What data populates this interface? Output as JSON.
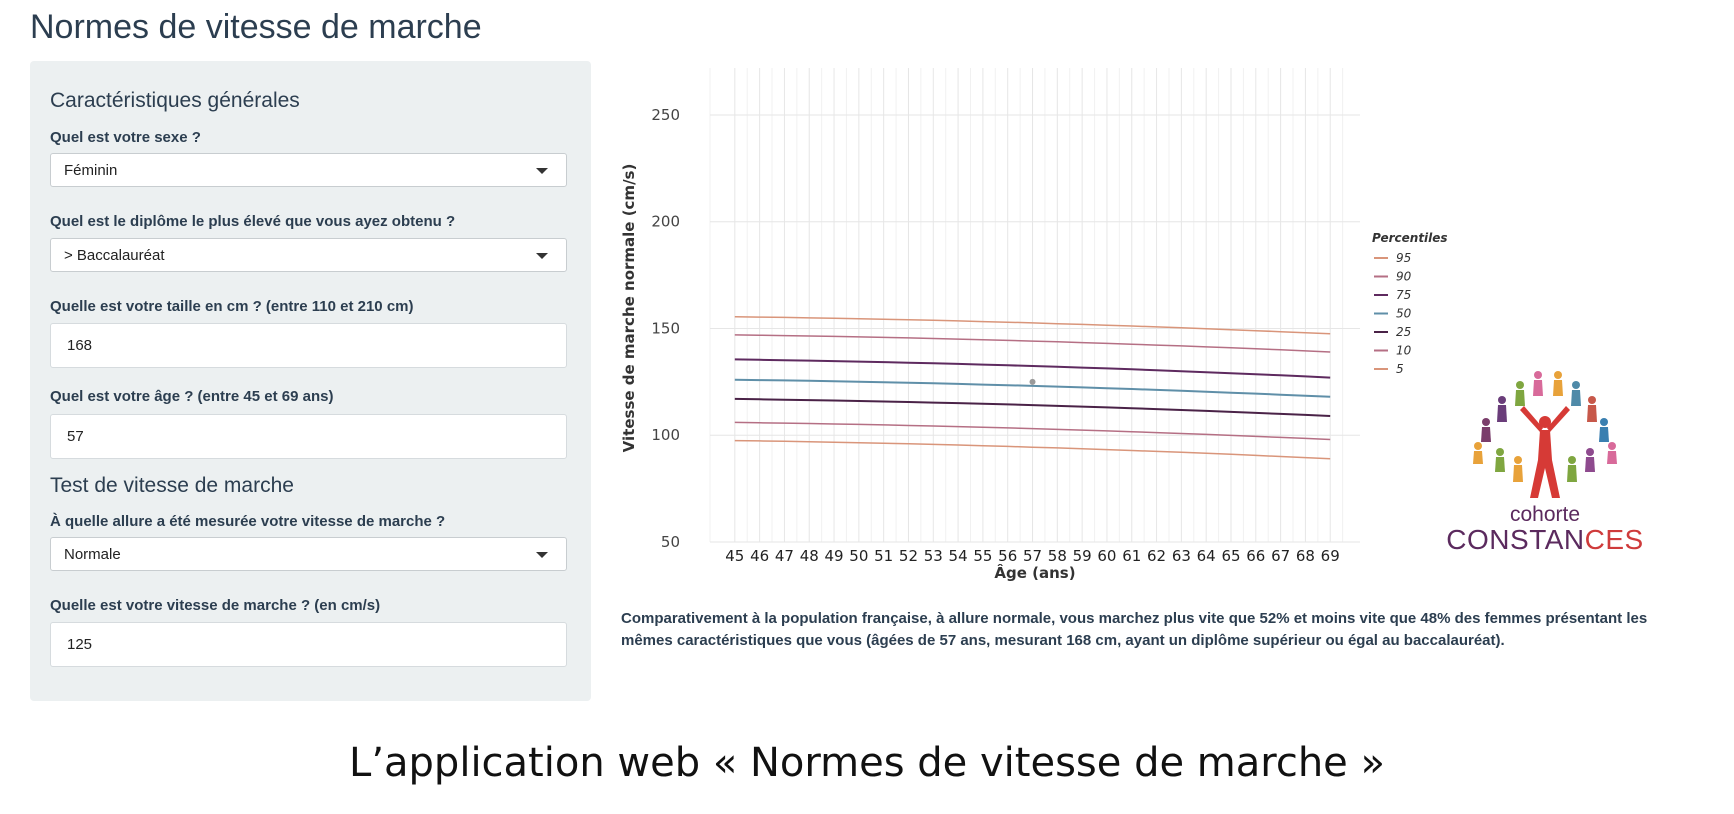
{
  "app": {
    "title": "Normes de vitesse de marche"
  },
  "sidebar": {
    "section_general": "Caractéristiques générales",
    "sex": {
      "label": "Quel est votre sexe ?",
      "value": "Féminin"
    },
    "diploma": {
      "label": "Quel est le diplôme le plus élevé que vous ayez obtenu ?",
      "value": "> Baccalauréat"
    },
    "height": {
      "label": "Quelle est votre taille en cm ? (entre 110 et 210 cm)",
      "value": "168"
    },
    "age": {
      "label": "Quel est votre âge ? (entre 45 et 69 ans)",
      "value": "57"
    },
    "section_test": "Test de vitesse de marche",
    "pace": {
      "label": "À quelle allure a été mesurée votre vitesse de marche ?",
      "value": "Normale"
    },
    "speed": {
      "label": "Quelle est votre vitesse de marche ? (en cm/s)",
      "value": "125"
    }
  },
  "chart_data": {
    "type": "line",
    "xlabel": "Âge (ans)",
    "ylabel": "Vitesse de marche normale (cm/s)",
    "x": [
      45,
      46,
      47,
      48,
      49,
      50,
      51,
      52,
      53,
      54,
      55,
      56,
      57,
      58,
      59,
      60,
      61,
      62,
      63,
      64,
      65,
      66,
      67,
      68,
      69
    ],
    "xlim": [
      44,
      70.2
    ],
    "ylim": [
      50,
      272
    ],
    "yticks": [
      50,
      100,
      150,
      200,
      250
    ],
    "grid": true,
    "legend_title": "Percentiles",
    "legend_position": "right",
    "series": [
      {
        "name": "95",
        "color": "#d9957a",
        "start": 155.5,
        "end": 147.5
      },
      {
        "name": "90",
        "color": "#b56f84",
        "start": 147,
        "end": 139
      },
      {
        "name": "75",
        "color": "#5e2a5f",
        "start": 135.5,
        "end": 127
      },
      {
        "name": "50",
        "color": "#5f8fa8",
        "start": 126,
        "end": 118
      },
      {
        "name": "25",
        "color": "#4a2247",
        "start": 117,
        "end": 109
      },
      {
        "name": "10",
        "color": "#b56f84",
        "start": 106,
        "end": 98
      },
      {
        "name": "5",
        "color": "#d9957a",
        "start": 97.5,
        "end": 89
      }
    ],
    "user_point": {
      "x": 57,
      "y": 125,
      "color": "#9a9a9a"
    }
  },
  "result": {
    "text": "Comparativement à la population française, à allure normale, vous marchez plus vite que 52% et moins vite que 48% des femmes présentant les mêmes caractéristiques que vous (âgées de 57 ans, mesurant 168 cm, ayant un diplôme supérieur ou égal au baccalauréat)."
  },
  "logo": {
    "line1": "cohorte",
    "line2_a": "CONSTAN",
    "line2_b": "CES",
    "line2_c": ""
  },
  "caption": "L’application web « Normes de vitesse de marche »"
}
